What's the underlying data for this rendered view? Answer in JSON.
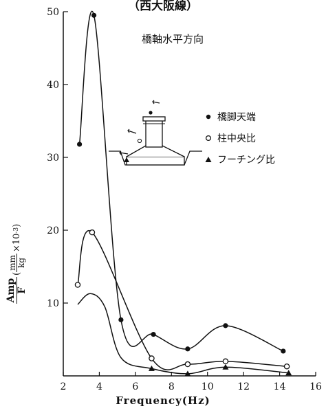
{
  "header": {
    "title": "（西大阪線）",
    "subtitle": "橋軸水平方向"
  },
  "axes": {
    "xlabel": "Frequency(Hz)",
    "ylabel_num": "Amp",
    "ylabel_den": "F",
    "ylabel_units_open": "(",
    "ylabel_units_num": "mm",
    "ylabel_units_den": "kg",
    "ylabel_units_scale": "×10",
    "ylabel_units_exp": "-3",
    "ylabel_units_close": ")"
  },
  "chart_data": {
    "type": "line",
    "xlabel": "Frequency(Hz)",
    "ylabel": "Amp/F (mm/kg ×10⁻³)",
    "title": "（西大阪線）",
    "subtitle": "橋軸水平方向",
    "xlim": [
      2,
      16
    ],
    "ylim": [
      0,
      50
    ],
    "x_ticks": [
      2,
      4,
      6,
      8,
      10,
      12,
      14,
      16
    ],
    "y_ticks": [
      10,
      20,
      30,
      40,
      50
    ],
    "grid": false,
    "legend_position": "right, upper-middle",
    "series": [
      {
        "name": "橋脚天端",
        "marker": "filled-circle",
        "x": [
          2.9,
          3.7,
          5.2,
          7.0,
          8.9,
          11.0,
          14.2
        ],
        "y": [
          31.8,
          49.5,
          7.7,
          5.7,
          3.7,
          6.9,
          3.4
        ]
      },
      {
        "name": "柱中央比",
        "marker": "open-circle",
        "x": [
          2.8,
          3.6,
          6.9,
          8.9,
          11.0,
          14.4
        ],
        "y": [
          12.5,
          19.7,
          2.4,
          1.6,
          2.0,
          1.3
        ]
      },
      {
        "name": "フーチング比",
        "marker": "filled-triangle",
        "x": [
          6.9,
          8.9,
          11.0,
          14.5
        ],
        "y": [
          1.0,
          0.3,
          1.2,
          0.4
        ]
      }
    ]
  }
}
